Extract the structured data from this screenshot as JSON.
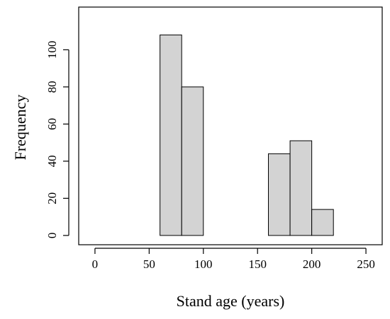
{
  "chart_data": {
    "type": "bar",
    "subtype": "histogram",
    "xlabel": "Stand age (years)",
    "ylabel": "Frequency",
    "xlim": [
      -15,
      265
    ],
    "ylim": [
      -5,
      123
    ],
    "xticks": [
      0,
      50,
      100,
      150,
      200,
      250
    ],
    "yticks": [
      0,
      20,
      40,
      60,
      80,
      100
    ],
    "bins": [
      {
        "from": 60,
        "to": 80,
        "count": 108
      },
      {
        "from": 80,
        "to": 100,
        "count": 80
      },
      {
        "from": 100,
        "to": 120,
        "count": 0
      },
      {
        "from": 120,
        "to": 140,
        "count": 0
      },
      {
        "from": 140,
        "to": 160,
        "count": 0
      },
      {
        "from": 160,
        "to": 180,
        "count": 44
      },
      {
        "from": 180,
        "to": 200,
        "count": 51
      },
      {
        "from": 200,
        "to": 220,
        "count": 14
      }
    ],
    "bar_color": "#d3d3d3",
    "grid": false
  }
}
